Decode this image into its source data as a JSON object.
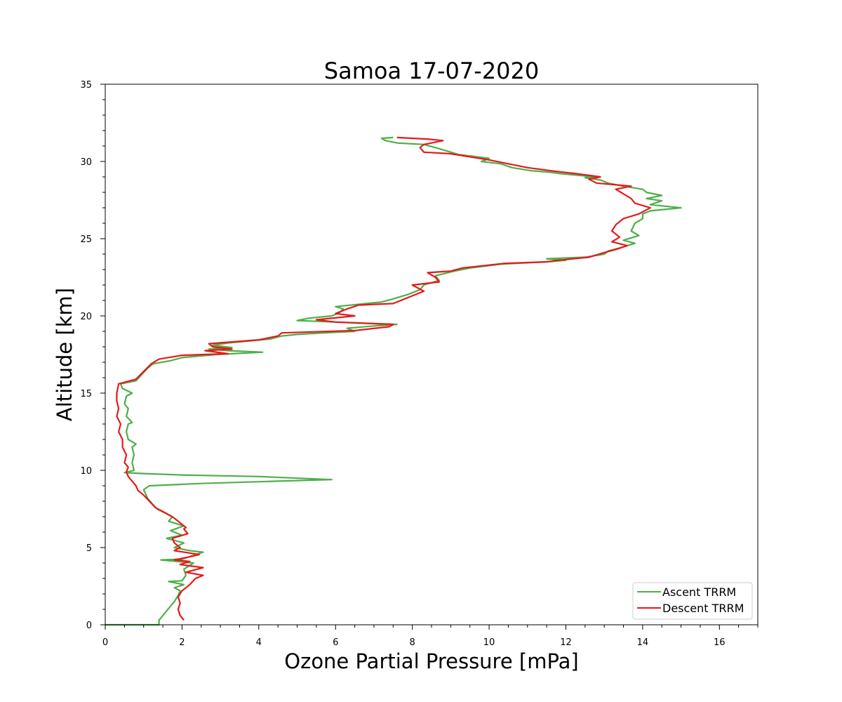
{
  "chart_data": {
    "type": "line",
    "title": "Samoa  17-07-2020",
    "xlabel": "Ozone Partial Pressure [mPa]",
    "ylabel": "Altitude [km]",
    "xlim": [
      0,
      17
    ],
    "ylim": [
      0,
      35
    ],
    "x_ticks": [
      "0",
      "2",
      "4",
      "6",
      "8",
      "10",
      "12",
      "14",
      "16"
    ],
    "y_ticks": [
      "0",
      "5",
      "10",
      "15",
      "20",
      "25",
      "30",
      "35"
    ],
    "grid": false,
    "legend_position": "lower-right",
    "series": [
      {
        "name": "Ascent TRRM",
        "color": "#4daf4a",
        "points": [
          [
            0.0,
            0.0
          ],
          [
            1.4,
            0.0
          ],
          [
            1.4,
            0.3
          ],
          [
            1.5,
            0.6
          ],
          [
            1.6,
            0.9
          ],
          [
            1.7,
            1.2
          ],
          [
            1.8,
            1.5
          ],
          [
            1.9,
            1.9
          ],
          [
            1.95,
            2.2
          ],
          [
            1.8,
            2.4
          ],
          [
            2.05,
            2.6
          ],
          [
            1.65,
            2.8
          ],
          [
            2.0,
            2.85
          ],
          [
            2.1,
            3.2
          ],
          [
            2.05,
            3.6
          ],
          [
            2.3,
            4.0
          ],
          [
            1.45,
            4.2
          ],
          [
            2.0,
            4.25
          ],
          [
            2.3,
            4.5
          ],
          [
            2.55,
            4.7
          ],
          [
            2.2,
            4.8
          ],
          [
            1.8,
            5.0
          ],
          [
            2.05,
            5.3
          ],
          [
            1.6,
            5.6
          ],
          [
            2.0,
            5.8
          ],
          [
            1.7,
            6.1
          ],
          [
            2.05,
            6.4
          ],
          [
            1.65,
            6.7
          ],
          [
            1.75,
            7.0
          ],
          [
            1.35,
            7.5
          ],
          [
            1.2,
            7.9
          ],
          [
            1.1,
            8.2
          ],
          [
            1.05,
            8.5
          ],
          [
            1.0,
            8.75
          ],
          [
            1.15,
            9.0
          ],
          [
            2.5,
            9.15
          ],
          [
            4.5,
            9.3
          ],
          [
            5.9,
            9.4
          ],
          [
            4.0,
            9.6
          ],
          [
            2.0,
            9.7
          ],
          [
            0.9,
            9.8
          ],
          [
            0.5,
            9.85
          ],
          [
            0.75,
            10.0
          ],
          [
            0.7,
            10.5
          ],
          [
            0.75,
            11.0
          ],
          [
            0.7,
            11.5
          ],
          [
            0.8,
            11.7
          ],
          [
            0.6,
            12.0
          ],
          [
            0.55,
            12.5
          ],
          [
            0.6,
            13.0
          ],
          [
            0.7,
            13.1
          ],
          [
            0.55,
            13.5
          ],
          [
            0.6,
            14.0
          ],
          [
            0.5,
            14.3
          ],
          [
            0.55,
            14.8
          ],
          [
            0.7,
            15.0
          ],
          [
            0.45,
            15.3
          ],
          [
            0.4,
            15.6
          ],
          [
            0.8,
            15.8
          ],
          [
            0.95,
            16.2
          ],
          [
            1.1,
            16.6
          ],
          [
            1.25,
            16.9
          ],
          [
            1.7,
            17.1
          ],
          [
            2.0,
            17.3
          ],
          [
            2.9,
            17.5
          ],
          [
            4.1,
            17.65
          ],
          [
            3.2,
            17.75
          ],
          [
            2.7,
            17.85
          ],
          [
            3.3,
            17.95
          ],
          [
            2.8,
            18.1
          ],
          [
            3.2,
            18.25
          ],
          [
            4.3,
            18.5
          ],
          [
            4.6,
            18.7
          ],
          [
            5.0,
            18.8
          ],
          [
            5.7,
            18.9
          ],
          [
            6.5,
            19.0
          ],
          [
            6.3,
            19.2
          ],
          [
            7.0,
            19.35
          ],
          [
            7.6,
            19.45
          ],
          [
            6.5,
            19.55
          ],
          [
            5.5,
            19.65
          ],
          [
            5.0,
            19.7
          ],
          [
            5.3,
            19.85
          ],
          [
            5.9,
            20.0
          ],
          [
            6.1,
            20.2
          ],
          [
            6.2,
            20.45
          ],
          [
            6.0,
            20.6
          ],
          [
            6.8,
            20.8
          ],
          [
            7.2,
            20.9
          ],
          [
            7.5,
            21.1
          ],
          [
            7.9,
            21.4
          ],
          [
            8.2,
            21.7
          ],
          [
            8.3,
            22.0
          ],
          [
            8.7,
            22.3
          ],
          [
            8.6,
            22.6
          ],
          [
            9.1,
            22.9
          ],
          [
            9.5,
            23.1
          ],
          [
            10.3,
            23.35
          ],
          [
            11.5,
            23.5
          ],
          [
            12.0,
            23.6
          ],
          [
            11.5,
            23.7
          ],
          [
            12.5,
            23.8
          ],
          [
            13.0,
            24.0
          ],
          [
            13.1,
            24.2
          ],
          [
            13.4,
            24.4
          ],
          [
            13.8,
            24.7
          ],
          [
            13.5,
            24.9
          ],
          [
            13.9,
            25.2
          ],
          [
            13.7,
            25.5
          ],
          [
            13.8,
            26.0
          ],
          [
            14.0,
            26.3
          ],
          [
            14.0,
            26.6
          ],
          [
            14.2,
            26.8
          ],
          [
            15.0,
            27.0
          ],
          [
            14.6,
            27.1
          ],
          [
            14.2,
            27.2
          ],
          [
            14.5,
            27.45
          ],
          [
            14.1,
            27.6
          ],
          [
            14.5,
            27.8
          ],
          [
            14.1,
            28.0
          ],
          [
            14.0,
            28.2
          ],
          [
            13.5,
            28.4
          ],
          [
            13.1,
            28.6
          ],
          [
            12.9,
            28.8
          ],
          [
            12.5,
            28.95
          ],
          [
            12.8,
            29.0
          ],
          [
            11.9,
            29.2
          ],
          [
            11.6,
            29.3
          ],
          [
            11.1,
            29.4
          ],
          [
            10.6,
            29.6
          ],
          [
            10.3,
            29.85
          ],
          [
            9.8,
            30.0
          ],
          [
            10.0,
            30.2
          ],
          [
            9.2,
            30.45
          ],
          [
            8.8,
            30.75
          ],
          [
            8.6,
            30.9
          ],
          [
            8.3,
            31.1
          ],
          [
            7.6,
            31.2
          ],
          [
            7.3,
            31.35
          ],
          [
            7.2,
            31.5
          ],
          [
            7.5,
            31.55
          ]
        ]
      },
      {
        "name": "Descent TRRM",
        "color": "#e41a1c",
        "points": [
          [
            2.05,
            0.3
          ],
          [
            1.95,
            0.6
          ],
          [
            1.9,
            1.0
          ],
          [
            1.95,
            1.4
          ],
          [
            1.9,
            1.8
          ],
          [
            2.0,
            2.2
          ],
          [
            2.2,
            2.6
          ],
          [
            2.35,
            3.0
          ],
          [
            2.55,
            3.2
          ],
          [
            2.1,
            3.4
          ],
          [
            2.55,
            3.7
          ],
          [
            1.95,
            3.9
          ],
          [
            2.2,
            4.1
          ],
          [
            1.8,
            4.2
          ],
          [
            2.2,
            4.4
          ],
          [
            2.45,
            4.55
          ],
          [
            1.8,
            4.8
          ],
          [
            1.95,
            5.0
          ],
          [
            1.8,
            5.3
          ],
          [
            1.75,
            5.6
          ],
          [
            2.15,
            5.9
          ],
          [
            2.05,
            6.2
          ],
          [
            2.1,
            6.3
          ],
          [
            1.95,
            6.6
          ],
          [
            1.8,
            6.9
          ],
          [
            1.6,
            7.2
          ],
          [
            1.3,
            7.6
          ],
          [
            1.15,
            8.0
          ],
          [
            1.0,
            8.4
          ],
          [
            0.85,
            8.7
          ],
          [
            0.8,
            9.0
          ],
          [
            0.7,
            9.3
          ],
          [
            0.6,
            9.6
          ],
          [
            0.55,
            9.9
          ],
          [
            0.6,
            10.2
          ],
          [
            0.5,
            10.5
          ],
          [
            0.55,
            11.0
          ],
          [
            0.45,
            11.5
          ],
          [
            0.45,
            12.0
          ],
          [
            0.35,
            12.5
          ],
          [
            0.4,
            13.0
          ],
          [
            0.3,
            13.5
          ],
          [
            0.35,
            14.0
          ],
          [
            0.3,
            14.5
          ],
          [
            0.3,
            15.0
          ],
          [
            0.35,
            15.6
          ],
          [
            0.8,
            15.9
          ],
          [
            1.0,
            16.4
          ],
          [
            1.2,
            16.9
          ],
          [
            1.4,
            17.2
          ],
          [
            2.0,
            17.45
          ],
          [
            3.2,
            17.55
          ],
          [
            2.6,
            17.75
          ],
          [
            3.3,
            17.85
          ],
          [
            2.8,
            18.0
          ],
          [
            2.7,
            18.2
          ],
          [
            4.0,
            18.45
          ],
          [
            4.5,
            18.7
          ],
          [
            4.6,
            18.9
          ],
          [
            6.5,
            19.05
          ],
          [
            7.4,
            19.3
          ],
          [
            7.5,
            19.45
          ],
          [
            6.0,
            19.6
          ],
          [
            5.5,
            19.75
          ],
          [
            6.5,
            20.0
          ],
          [
            6.0,
            20.15
          ],
          [
            6.3,
            20.45
          ],
          [
            6.6,
            20.7
          ],
          [
            7.5,
            20.8
          ],
          [
            7.8,
            21.1
          ],
          [
            8.0,
            21.3
          ],
          [
            8.3,
            21.6
          ],
          [
            8.0,
            22.0
          ],
          [
            8.7,
            22.2
          ],
          [
            8.6,
            22.5
          ],
          [
            8.4,
            22.8
          ],
          [
            9.0,
            22.9
          ],
          [
            9.3,
            23.1
          ],
          [
            10.4,
            23.4
          ],
          [
            11.5,
            23.5
          ],
          [
            11.8,
            23.6
          ],
          [
            12.6,
            23.8
          ],
          [
            13.0,
            24.1
          ],
          [
            13.3,
            24.3
          ],
          [
            13.6,
            24.55
          ],
          [
            13.2,
            24.8
          ],
          [
            13.4,
            25.1
          ],
          [
            13.2,
            25.5
          ],
          [
            13.3,
            25.9
          ],
          [
            13.5,
            26.3
          ],
          [
            13.9,
            26.6
          ],
          [
            14.2,
            27.0
          ],
          [
            13.8,
            27.3
          ],
          [
            13.7,
            27.6
          ],
          [
            13.5,
            27.9
          ],
          [
            13.3,
            28.2
          ],
          [
            13.7,
            28.4
          ],
          [
            12.8,
            28.6
          ],
          [
            12.6,
            28.85
          ],
          [
            12.9,
            29.0
          ],
          [
            12.3,
            29.2
          ],
          [
            11.6,
            29.4
          ],
          [
            11.0,
            29.6
          ],
          [
            10.5,
            29.85
          ],
          [
            10.0,
            30.1
          ],
          [
            9.5,
            30.3
          ],
          [
            9.0,
            30.5
          ],
          [
            8.3,
            30.6
          ],
          [
            8.2,
            30.9
          ],
          [
            8.3,
            31.1
          ],
          [
            8.8,
            31.35
          ],
          [
            8.4,
            31.45
          ],
          [
            7.6,
            31.55
          ]
        ]
      }
    ]
  }
}
